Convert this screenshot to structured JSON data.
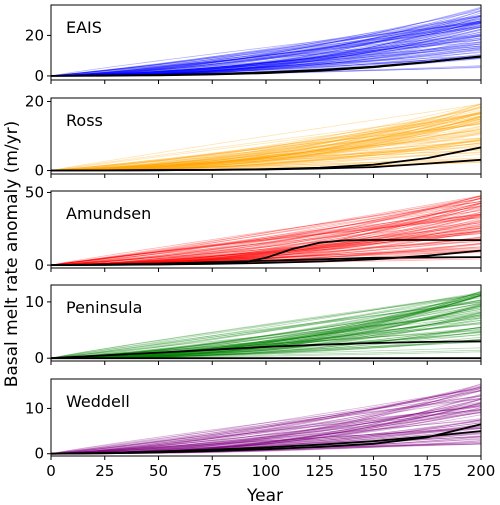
{
  "chart_data": {
    "type": "line",
    "xlabel": "Year",
    "ylabel": "Basal melt rate anomaly (m/yr)",
    "xlim": [
      0,
      200
    ],
    "xticks": [
      0,
      25,
      50,
      75,
      100,
      125,
      150,
      175,
      200
    ],
    "grid": false,
    "panels": [
      {
        "name": "EAIS",
        "color": "#0000ff",
        "ylim": [
          -2,
          35
        ],
        "yticks": [
          0,
          20
        ],
        "ensemble": {
          "members": 90,
          "max_end": 34,
          "min_end": 3
        },
        "highlight_series": [
          {
            "x": [
              0,
              25,
              50,
              75,
              100,
              125,
              150,
              175,
              200
            ],
            "values": [
              0,
              0.1,
              0.3,
              0.7,
              1.4,
              2.6,
              4.3,
              6.8,
              9.7
            ]
          },
          {
            "x": [
              0,
              25,
              50,
              75,
              100,
              125,
              150,
              175,
              200
            ],
            "values": [
              0,
              0.2,
              0.5,
              1.0,
              1.8,
              3.0,
              4.6,
              6.9,
              9.5
            ]
          }
        ]
      },
      {
        "name": "Ross",
        "color": "#ffa500",
        "ylim": [
          -1,
          21
        ],
        "yticks": [
          0,
          20
        ],
        "ensemble": {
          "members": 90,
          "max_end": 19.5,
          "min_end": 1
        },
        "highlight_series": [
          {
            "x": [
              0,
              25,
              50,
              75,
              100,
              125,
              150,
              175,
              200
            ],
            "values": [
              0,
              0.05,
              0.1,
              0.2,
              0.4,
              0.8,
              1.7,
              3.6,
              6.7
            ]
          },
          {
            "x": [
              0,
              25,
              50,
              75,
              100,
              125,
              150,
              175,
              200
            ],
            "values": [
              0,
              0.05,
              0.1,
              0.2,
              0.3,
              0.6,
              1.0,
              2.0,
              3.1
            ]
          }
        ]
      },
      {
        "name": "Amundsen",
        "color": "#ff0000",
        "ylim": [
          -2,
          51
        ],
        "yticks": [
          0,
          50
        ],
        "ensemble": {
          "members": 90,
          "max_end": 49,
          "min_end": 3
        },
        "highlight_series": [
          {
            "x": [
              0,
              25,
              50,
              75,
              90,
              100,
              112,
              125,
              137,
              150,
              175,
              200
            ],
            "values": [
              0,
              0.2,
              0.5,
              1.0,
              2.0,
              5.0,
              11.0,
              15.5,
              17.0,
              17.3,
              17.3,
              17.2
            ]
          },
          {
            "x": [
              0,
              25,
              50,
              75,
              100,
              125,
              150,
              175,
              200
            ],
            "values": [
              0,
              0.5,
              1.0,
              2.0,
              3.0,
              4.0,
              5.0,
              5.3,
              5.5
            ]
          },
          {
            "x": [
              0,
              25,
              50,
              75,
              100,
              125,
              150,
              175,
              200
            ],
            "values": [
              0,
              0.2,
              0.4,
              0.8,
              1.5,
              2.5,
              4.0,
              6.5,
              10.0
            ]
          }
        ]
      },
      {
        "name": "Peninsula",
        "color": "#008000",
        "ylim": [
          -0.5,
          13
        ],
        "yticks": [
          0,
          10
        ],
        "ensemble": {
          "members": 90,
          "max_end": 12,
          "min_end": 1
        },
        "highlight_series": [
          {
            "x": [
              0,
              25,
              50,
              75,
              100,
              125,
              150,
              175,
              200
            ],
            "values": [
              0,
              0.5,
              1.0,
              1.5,
              2.0,
              2.4,
              2.7,
              2.9,
              3.0
            ]
          },
          {
            "x": [
              0,
              25,
              50,
              75,
              100,
              125,
              150,
              175,
              200
            ],
            "values": [
              0,
              0.0,
              0.0,
              0.0,
              0.0,
              0.0,
              0.0,
              0.0,
              0.0
            ]
          }
        ]
      },
      {
        "name": "Weddell",
        "color": "#800080",
        "ylim": [
          -0.5,
          16.5
        ],
        "yticks": [
          0,
          10
        ],
        "ensemble": {
          "members": 90,
          "max_end": 15.5,
          "min_end": 1.5
        },
        "highlight_series": [
          {
            "x": [
              0,
              25,
              50,
              75,
              100,
              125,
              150,
              175,
              200
            ],
            "values": [
              0,
              0.1,
              0.3,
              0.6,
              1.0,
              1.5,
              2.2,
              3.6,
              6.5
            ]
          },
          {
            "x": [
              0,
              25,
              50,
              75,
              100,
              125,
              150,
              175,
              200
            ],
            "values": [
              0,
              0.2,
              0.5,
              0.9,
              1.4,
              2.0,
              2.8,
              3.8,
              5.0
            ]
          }
        ]
      }
    ]
  }
}
